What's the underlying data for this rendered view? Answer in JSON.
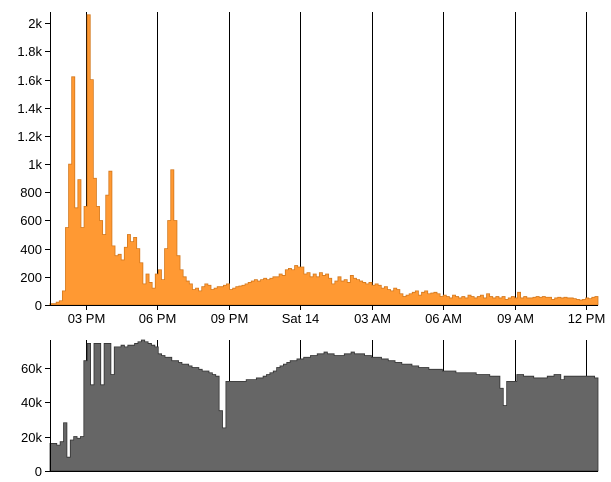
{
  "chart_data": [
    {
      "type": "area",
      "title": "",
      "xlabel": "",
      "ylabel": "",
      "ylim": [
        0,
        2080
      ],
      "grid": "vertical lines at x tick positions",
      "color": "#FF9933",
      "stroke_color": "#D4781C",
      "x_range_hours": [
        0,
        23
      ],
      "y_ticks": [
        0,
        200,
        400,
        600,
        800,
        1000,
        1200,
        1400,
        1600,
        1800,
        2000
      ],
      "y_tick_labels": [
        "0",
        "200",
        "400",
        "600",
        "800",
        "1k",
        "1.2k",
        "1.4k",
        "1.6k",
        "1.8k",
        "2k"
      ],
      "x_ticks": [
        1.5,
        4.5,
        7.5,
        10.5,
        13.5,
        16.5,
        19.5,
        22.5
      ],
      "x_tick_labels": [
        "03 PM",
        "06 PM",
        "09 PM",
        "Sat 14",
        "03 AM",
        "06 AM",
        "09 AM",
        "12 PM"
      ],
      "values": [
        10,
        10,
        20,
        30,
        100,
        550,
        1000,
        1620,
        690,
        890,
        550,
        700,
        2060,
        1600,
        900,
        700,
        600,
        500,
        780,
        950,
        420,
        350,
        360,
        320,
        410,
        500,
        450,
        480,
        400,
        300,
        150,
        220,
        160,
        120,
        220,
        250,
        180,
        400,
        600,
        960,
        600,
        350,
        250,
        200,
        170,
        150,
        110,
        120,
        100,
        130,
        150,
        140,
        110,
        120,
        130,
        130,
        140,
        150,
        110,
        120,
        130,
        135,
        140,
        150,
        160,
        170,
        180,
        170,
        180,
        190,
        180,
        190,
        200,
        200,
        220,
        210,
        250,
        260,
        250,
        280,
        270,
        270,
        220,
        230,
        200,
        220,
        200,
        230,
        210,
        220,
        190,
        150,
        170,
        200,
        170,
        180,
        160,
        210,
        190,
        180,
        170,
        160,
        150,
        160,
        140,
        150,
        140,
        120,
        130,
        110,
        100,
        120,
        110,
        80,
        60,
        70,
        80,
        90,
        100,
        70,
        90,
        100,
        80,
        85,
        90,
        80,
        60,
        70,
        60,
        50,
        70,
        60,
        50,
        60,
        50,
        70,
        60,
        50,
        60,
        70,
        50,
        80,
        60,
        50,
        60,
        50,
        60,
        40,
        50,
        60,
        50,
        90,
        50,
        60,
        50,
        50,
        55,
        60,
        55,
        60,
        55,
        55,
        40,
        50,
        55,
        50,
        55,
        50,
        50,
        45,
        40,
        35,
        40,
        50,
        45,
        55,
        60
      ]
    },
    {
      "type": "area",
      "title": "",
      "xlabel": "",
      "ylabel": "",
      "ylim": [
        0,
        76000
      ],
      "grid": "vertical lines at x tick positions",
      "color": "#666666",
      "stroke_color": "#333333",
      "x_range_hours": [
        0,
        23
      ],
      "y_ticks": [
        0,
        20000,
        40000,
        60000
      ],
      "y_tick_labels": [
        "0",
        "20k",
        "40k",
        "60k"
      ],
      "x_ticks": [
        1.5,
        4.5,
        7.5,
        10.5,
        13.5,
        16.5,
        19.5,
        22.5
      ],
      "values": [
        16000,
        16000,
        15000,
        17000,
        28000,
        8000,
        18000,
        20000,
        19000,
        20000,
        64000,
        74000,
        50000,
        74000,
        74000,
        50000,
        74000,
        74000,
        56000,
        72000,
        72000,
        73000,
        72000,
        73000,
        73000,
        74000,
        75000,
        76000,
        75000,
        74000,
        73000,
        72000,
        68000,
        67000,
        66000,
        66000,
        64000,
        64000,
        63000,
        62000,
        62000,
        61000,
        60000,
        60000,
        59000,
        58000,
        58000,
        57000,
        56000,
        55000,
        35000,
        25000,
        52000,
        52000,
        52000,
        52000,
        52000,
        52000,
        53000,
        53000,
        53000,
        54000,
        54000,
        55000,
        56000,
        57000,
        58000,
        60000,
        61000,
        62000,
        63000,
        64000,
        64000,
        65000,
        65000,
        66000,
        66000,
        67000,
        67000,
        68000,
        68000,
        69000,
        68000,
        68000,
        67000,
        67000,
        67000,
        68000,
        68000,
        69000,
        68000,
        68000,
        68000,
        67000,
        67000,
        66000,
        66000,
        66000,
        65000,
        65000,
        64000,
        64000,
        63000,
        63000,
        62000,
        62000,
        62000,
        61000,
        61000,
        60000,
        60000,
        60000,
        59000,
        59000,
        59000,
        59000,
        58000,
        58000,
        58000,
        58000,
        57000,
        57000,
        57000,
        57000,
        57000,
        57000,
        56000,
        56000,
        56000,
        56000,
        55000,
        55000,
        55000,
        48000,
        38000,
        52000,
        52000,
        52000,
        56000,
        56000,
        55000,
        55000,
        55000,
        54000,
        54000,
        54000,
        54000,
        55000,
        55000,
        56000,
        56000,
        53000,
        55000,
        55000,
        55000,
        55000,
        55000,
        55000,
        55000,
        55000,
        55000,
        54000
      ]
    }
  ]
}
